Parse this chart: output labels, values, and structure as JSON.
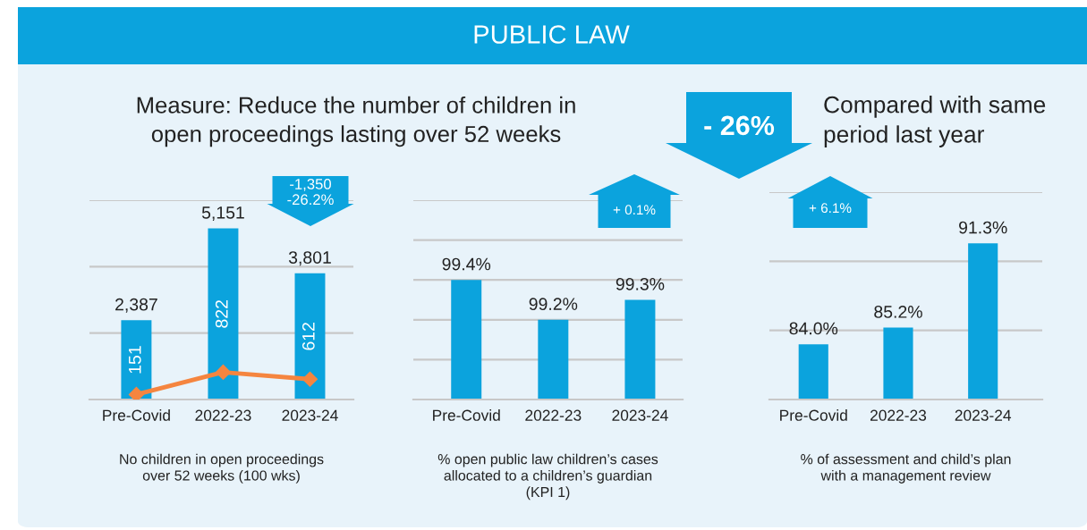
{
  "chart_data": [
    {
      "type": "bar",
      "subtitle": "Measure: Reduce the number of children in\nopen proceedings lasting over 52 weeks",
      "annotations": [
        "PUBLIC LAW",
        "-1,350\n-26.2%",
        "- 26%",
        "Compared with same\nperiod last year"
      ],
      "categories": [
        "Pre-Covid",
        "2022-23",
        "2023-24"
      ],
      "series": [
        {
          "type": "bar",
          "color": "#0ba3dd",
          "values": [
            2387,
            5151,
            3801
          ],
          "value_labels": [
            "2,387",
            "5,151",
            "3,801"
          ]
        },
        {
          "type": "line",
          "color": "#f5853f",
          "marker": "diamond",
          "values": [
            151,
            822,
            612
          ],
          "value_labels": [
            "151",
            "822",
            "612"
          ]
        }
      ],
      "ylim": [
        0,
        6000
      ],
      "yticks": [
        {
          "value": 0,
          "label": null
        },
        {
          "value": 2000,
          "label": null
        },
        {
          "value": 4000,
          "label": null
        },
        {
          "value": 6000,
          "label": null
        }
      ],
      "tick_labels": "x",
      "grid": "y",
      "xlabel": "No children in open proceedings\nover 52 weeks (100 wks)"
    },
    {
      "type": "bar",
      "annotations": [
        "+ 0.1%"
      ],
      "categories": [
        "Pre-Covid",
        "2022-23",
        "2023-24"
      ],
      "series": [
        {
          "color": "#0ba3dd",
          "values": [
            99.4,
            99.2,
            99.3
          ],
          "value_labels": [
            "99.4%",
            "99.2%",
            "99.3%"
          ]
        }
      ],
      "ylim": [
        98.8,
        99.8
      ],
      "yticks": [
        {
          "value": 98.8,
          "label": null
        },
        {
          "value": 99.0,
          "label": null
        },
        {
          "value": 99.2,
          "label": null
        },
        {
          "value": 99.4,
          "label": null
        },
        {
          "value": 99.6,
          "label": null
        },
        {
          "value": 99.8,
          "label": null
        }
      ],
      "tick_labels": "x",
      "grid": "y",
      "xlabel": "% open public law children’s cases\nallocated to a children’s guardian\n(KPI 1)"
    },
    {
      "type": "bar",
      "annotations": [
        "+ 6.1%"
      ],
      "categories": [
        "Pre-Covid",
        "2022-23",
        "2023-24"
      ],
      "series": [
        {
          "color": "#0ba3dd",
          "values": [
            84.0,
            85.2,
            91.3
          ],
          "value_labels": [
            "84.0%",
            "85.2%",
            "91.3%"
          ]
        }
      ],
      "ylim": [
        80,
        95
      ],
      "yticks": [
        {
          "value": 80,
          "label": null
        },
        {
          "value": 85,
          "label": null
        },
        {
          "value": 90,
          "label": null
        },
        {
          "value": 95,
          "label": null
        }
      ],
      "tick_labels": "x",
      "grid": "y",
      "xlabel": "% of assessment and child’s plan\nwith a management review"
    }
  ]
}
